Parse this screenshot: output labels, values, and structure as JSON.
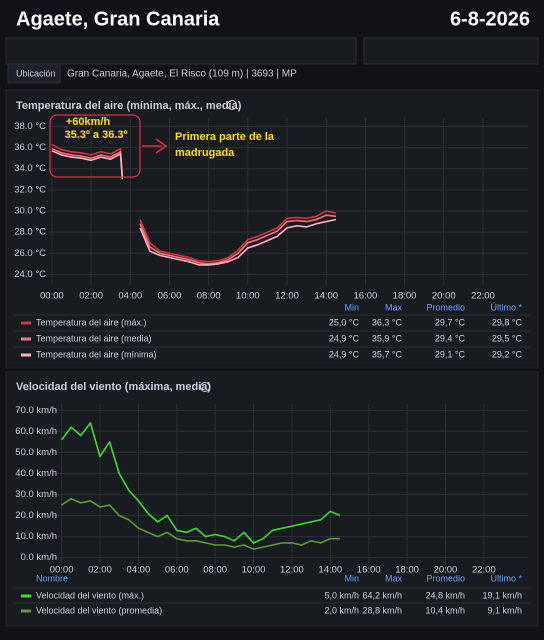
{
  "header": {
    "title": "Agaete, Gran Canaria",
    "date": "6-8-2026"
  },
  "info": {
    "label": "Ubicación",
    "value": "Gran Canaria, Agaete, El Risco (109 m) | 3693 | MP"
  },
  "chart_data": [
    {
      "type": "line",
      "title": "Temperatura del aire (mínima, máx., media)",
      "x": [
        0,
        0.5,
        1,
        1.5,
        2,
        2.5,
        3,
        3.5,
        3.6,
        4,
        4.5,
        5,
        5.5,
        6,
        6.5,
        7,
        7.5,
        8,
        8.5,
        9,
        9.5,
        10,
        10.5,
        11,
        11.5,
        12,
        12.5,
        13,
        13.5,
        14,
        14.5
      ],
      "xlim": [
        -0.2,
        24.3
      ],
      "xticks": [
        {
          "value": 0,
          "label": "00:00"
        },
        {
          "value": 2,
          "label": "02:00"
        },
        {
          "value": 4,
          "label": "04:00"
        },
        {
          "value": 6,
          "label": "06:00"
        },
        {
          "value": 8,
          "label": "08:00"
        },
        {
          "value": 10,
          "label": "10:00"
        },
        {
          "value": 12,
          "label": "12:00"
        },
        {
          "value": 14,
          "label": "14:00"
        },
        {
          "value": 16,
          "label": "16:00"
        },
        {
          "value": 18,
          "label": "18:00"
        },
        {
          "value": 20,
          "label": "20:00"
        },
        {
          "value": 22,
          "label": "22:00"
        }
      ],
      "ylim": [
        23,
        38.8
      ],
      "yticks": [
        {
          "value": 24,
          "label": "24.0 °C"
        },
        {
          "value": 26,
          "label": "26.0 °C"
        },
        {
          "value": 28,
          "label": "28.0 °C"
        },
        {
          "value": 30,
          "label": "30.0 °C"
        },
        {
          "value": 32,
          "label": "32.0 °C"
        },
        {
          "value": 34,
          "label": "34.0 °C"
        },
        {
          "value": 36,
          "label": "36.0 °C"
        },
        {
          "value": 38,
          "label": "38.0 °C"
        }
      ],
      "grid": true,
      "stats_labels": [
        "Min",
        "Max",
        "Promedio",
        "Último *"
      ],
      "series": [
        {
          "name": "Temperatura del aire (máx.)",
          "color": "#e02f44",
          "values": [
            36.3,
            35.8,
            35.6,
            35.5,
            35.3,
            35.6,
            35.4,
            35.9,
            33.3,
            null,
            29.2,
            27.0,
            26.2,
            26.0,
            25.8,
            25.6,
            25.3,
            25.2,
            25.3,
            25.6,
            26.3,
            27.3,
            27.6,
            28.0,
            28.4,
            29.3,
            29.4,
            29.3,
            29.5,
            30.0,
            29.8
          ],
          "stats": [
            "25,0 °C",
            "36,3 °C",
            "29,7 °C",
            "29,8 °C"
          ]
        },
        {
          "name": "Temperatura del aire (media)",
          "color": "#ff7383",
          "values": [
            35.9,
            35.5,
            35.3,
            35.2,
            35.0,
            35.3,
            35.1,
            35.6,
            33.1,
            null,
            28.8,
            26.6,
            26.0,
            25.8,
            25.6,
            25.4,
            25.1,
            25.0,
            25.1,
            25.4,
            26.0,
            27.0,
            27.3,
            27.7,
            28.1,
            29.0,
            29.1,
            29.0,
            29.2,
            29.6,
            29.5
          ],
          "stats": [
            "24,9 °C",
            "35,9 °C",
            "29,4 °C",
            "29,5 °C"
          ]
        },
        {
          "name": "Temperatura del aire (mínima)",
          "color": "#ffb3bd",
          "values": [
            35.7,
            35.3,
            35.1,
            35.0,
            34.8,
            35.1,
            34.9,
            35.4,
            33.0,
            null,
            28.4,
            26.2,
            25.8,
            25.6,
            25.4,
            25.2,
            24.9,
            24.9,
            25.0,
            25.2,
            25.6,
            26.5,
            26.8,
            27.2,
            27.6,
            28.4,
            28.6,
            28.5,
            28.8,
            29.0,
            29.2
          ],
          "stats": [
            "24,9 °C",
            "35,7 °C",
            "29,1 °C",
            "29,2 °C"
          ]
        }
      ],
      "annotations": [
        "+60km/h",
        "35.3º a 36.3º",
        "Primera parte de la",
        "madrugada"
      ]
    },
    {
      "type": "line",
      "title": "Velocidad del viento (máxima, media)",
      "x": [
        0,
        0.5,
        1,
        1.5,
        2,
        2.5,
        3,
        3.5,
        4,
        4.5,
        5,
        5.5,
        6,
        6.5,
        7,
        7.5,
        8,
        8.5,
        9,
        9.5,
        10,
        10.5,
        11,
        11.5,
        12,
        12.5,
        13,
        13.5,
        14,
        14.5
      ],
      "xlim": [
        -0.5,
        24.3
      ],
      "xticks": [
        {
          "value": 0,
          "label": "00:00"
        },
        {
          "value": 2,
          "label": "02:00"
        },
        {
          "value": 4,
          "label": "04:00"
        },
        {
          "value": 6,
          "label": "06:00"
        },
        {
          "value": 8,
          "label": "08:00"
        },
        {
          "value": 10,
          "label": "10:00"
        },
        {
          "value": 12,
          "label": "12:00"
        },
        {
          "value": 14,
          "label": "14:00"
        },
        {
          "value": 16,
          "label": "16:00"
        },
        {
          "value": 18,
          "label": "18:00"
        },
        {
          "value": 20,
          "label": "20:00"
        },
        {
          "value": 22,
          "label": "22:00"
        }
      ],
      "ylim": [
        -3.5,
        73
      ],
      "yticks": [
        {
          "value": 0,
          "label": "0.0 km/h"
        },
        {
          "value": 10,
          "label": "10.0 km/h"
        },
        {
          "value": 20,
          "label": "20.0 km/h"
        },
        {
          "value": 30,
          "label": "30.0 km/h"
        },
        {
          "value": 40,
          "label": "40.0 km/h"
        },
        {
          "value": 50,
          "label": "50.0 km/h"
        },
        {
          "value": 60,
          "label": "60.0 km/h"
        },
        {
          "value": 70,
          "label": "70.0 km/h"
        }
      ],
      "grid": true,
      "name_header": "Nombre",
      "stats_labels": [
        "Min",
        "Max",
        "Promedio",
        "Último *"
      ],
      "series": [
        {
          "name": "Velocidad del viento (máx.)",
          "color": "#3fdc25",
          "values": [
            56,
            62,
            58,
            64,
            48,
            55,
            40,
            32,
            27,
            21,
            17,
            20,
            13,
            12,
            14,
            10,
            11,
            10,
            8,
            12,
            7,
            9,
            13,
            14,
            15,
            16,
            17,
            18,
            22,
            20
          ],
          "stats": [
            "5,0 km/h",
            "64,2 km/h",
            "24,8 km/h",
            "19,1 km/h"
          ]
        },
        {
          "name": "Velocidad del viento (promedia)",
          "color": "#5a9e3a",
          "values": [
            25,
            28,
            26,
            27,
            24,
            25,
            20,
            18,
            14,
            12,
            10,
            12,
            9,
            8,
            8,
            7,
            6,
            6,
            5,
            6,
            4,
            5,
            6,
            7,
            7,
            6,
            8,
            7,
            9,
            9
          ],
          "stats": [
            "2,0 km/h",
            "28,8 km/h",
            "10,4 km/h",
            "9,1 km/h"
          ]
        }
      ]
    }
  ]
}
